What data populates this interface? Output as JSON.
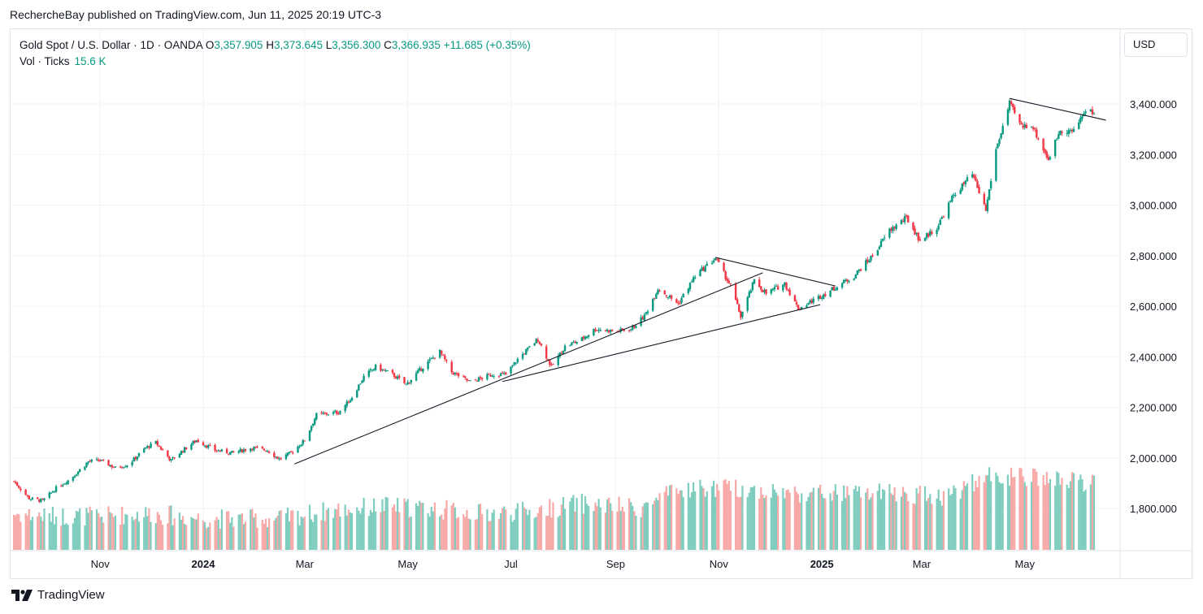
{
  "publisher_line": "RechercheBay published on TradingView.com, Jun 11, 2025 20:19 UTC-3",
  "legend": {
    "symbol": "Gold Spot / U.S. Dollar · 1D · OANDA",
    "o_label": "O",
    "o_value": "3,357.905",
    "h_label": "H",
    "h_value": "3,373.645",
    "l_label": "L",
    "l_value": "3,356.300",
    "c_label": "C",
    "c_value": "3,366.935",
    "change": "+11.685 (+0.35%)",
    "vol_label": "Vol · Ticks",
    "vol_value": "15.6 K"
  },
  "currency_button": "USD",
  "brand": "TradingView",
  "colors": {
    "up": "#089981",
    "down": "#f23645",
    "vol_up": "#7fcdbf",
    "vol_down": "#f7a9a7",
    "grid": "#f0f3fa",
    "trendline": "#131722"
  },
  "chart_data": {
    "type": "candlestick",
    "y_axis": {
      "min": 1700,
      "max": 3560,
      "ticks": [
        "3,400.000",
        "3,200.000",
        "3,000.000",
        "2,800.000",
        "2,600.000",
        "2,400.000",
        "2,200.000",
        "2,000.000",
        "1,800.000"
      ],
      "tick_values": [
        3400,
        3200,
        3000,
        2800,
        2600,
        2400,
        2200,
        2000,
        1800
      ]
    },
    "x_axis": {
      "labels": [
        "Nov",
        "2024",
        "Mar",
        "May",
        "Jul",
        "Sep",
        "Nov",
        "2025",
        "Mar",
        "May"
      ],
      "label_dates": [
        "2023-11-01",
        "2024-01-01",
        "2024-03-01",
        "2024-05-01",
        "2024-07-01",
        "2024-09-01",
        "2024-11-01",
        "2025-01-01",
        "2025-03-01",
        "2025-05-01"
      ],
      "bold": [
        false,
        true,
        false,
        false,
        false,
        false,
        false,
        true,
        false,
        false
      ],
      "start": "2023-09-10",
      "end": "2025-06-11"
    },
    "close_path": [
      [
        "2023-09-10",
        1915
      ],
      [
        "2023-09-20",
        1840
      ],
      [
        "2023-09-28",
        1830
      ],
      [
        "2023-10-06",
        1880
      ],
      [
        "2023-10-15",
        1920
      ],
      [
        "2023-10-25",
        1985
      ],
      [
        "2023-11-01",
        1990
      ],
      [
        "2023-11-10",
        1960
      ],
      [
        "2023-11-18",
        1975
      ],
      [
        "2023-11-28",
        2040
      ],
      [
        "2023-12-04",
        2060
      ],
      [
        "2023-12-13",
        1990
      ],
      [
        "2023-12-20",
        2030
      ],
      [
        "2023-12-28",
        2070
      ],
      [
        "2024-01-08",
        2030
      ],
      [
        "2024-01-18",
        2020
      ],
      [
        "2024-01-30",
        2040
      ],
      [
        "2024-02-08",
        2030
      ],
      [
        "2024-02-15",
        1995
      ],
      [
        "2024-02-22",
        2020
      ],
      [
        "2024-03-01",
        2070
      ],
      [
        "2024-03-08",
        2170
      ],
      [
        "2024-03-21",
        2180
      ],
      [
        "2024-03-28",
        2230
      ],
      [
        "2024-04-05",
        2320
      ],
      [
        "2024-04-12",
        2360
      ],
      [
        "2024-04-22",
        2330
      ],
      [
        "2024-04-30",
        2290
      ],
      [
        "2024-05-10",
        2360
      ],
      [
        "2024-05-20",
        2420
      ],
      [
        "2024-05-27",
        2340
      ],
      [
        "2024-06-07",
        2300
      ],
      [
        "2024-06-20",
        2330
      ],
      [
        "2024-06-28",
        2330
      ],
      [
        "2024-07-05",
        2390
      ],
      [
        "2024-07-17",
        2470
      ],
      [
        "2024-07-25",
        2360
      ],
      [
        "2024-08-02",
        2440
      ],
      [
        "2024-08-12",
        2470
      ],
      [
        "2024-08-20",
        2510
      ],
      [
        "2024-09-01",
        2500
      ],
      [
        "2024-09-10",
        2510
      ],
      [
        "2024-09-18",
        2560
      ],
      [
        "2024-09-26",
        2670
      ],
      [
        "2024-10-08",
        2610
      ],
      [
        "2024-10-18",
        2720
      ],
      [
        "2024-10-30",
        2790
      ],
      [
        "2024-11-08",
        2680
      ],
      [
        "2024-11-14",
        2560
      ],
      [
        "2024-11-22",
        2700
      ],
      [
        "2024-11-29",
        2650
      ],
      [
        "2024-12-10",
        2690
      ],
      [
        "2024-12-18",
        2590
      ],
      [
        "2024-12-26",
        2620
      ],
      [
        "2025-01-08",
        2670
      ],
      [
        "2025-01-20",
        2720
      ],
      [
        "2025-01-31",
        2800
      ],
      [
        "2025-02-10",
        2900
      ],
      [
        "2025-02-20",
        2950
      ],
      [
        "2025-02-28",
        2860
      ],
      [
        "2025-03-10",
        2910
      ],
      [
        "2025-03-20",
        3040
      ],
      [
        "2025-03-31",
        3120
      ],
      [
        "2025-04-08",
        2980
      ],
      [
        "2025-04-14",
        3220
      ],
      [
        "2025-04-22",
        3400
      ],
      [
        "2025-04-29",
        3310
      ],
      [
        "2025-05-05",
        3320
      ],
      [
        "2025-05-15",
        3180
      ],
      [
        "2025-05-22",
        3300
      ],
      [
        "2025-05-30",
        3290
      ],
      [
        "2025-06-05",
        3370
      ],
      [
        "2025-06-11",
        3367
      ]
    ],
    "volume_path": [
      [
        "2023-09-10",
        1780
      ],
      [
        "2023-10-01",
        1770
      ],
      [
        "2023-11-01",
        1770
      ],
      [
        "2023-12-01",
        1780
      ],
      [
        "2024-01-01",
        1760
      ],
      [
        "2024-02-15",
        1760
      ],
      [
        "2024-03-15",
        1790
      ],
      [
        "2024-04-15",
        1810
      ],
      [
        "2024-05-15",
        1800
      ],
      [
        "2024-06-15",
        1780
      ],
      [
        "2024-07-15",
        1790
      ],
      [
        "2024-08-10",
        1820
      ],
      [
        "2024-09-15",
        1800
      ],
      [
        "2024-10-01",
        1850
      ],
      [
        "2024-10-15",
        1880
      ],
      [
        "2024-11-10",
        1880
      ],
      [
        "2024-12-15",
        1860
      ],
      [
        "2025-01-15",
        1860
      ],
      [
        "2025-02-15",
        1860
      ],
      [
        "2025-03-15",
        1850
      ],
      [
        "2025-04-10",
        1930
      ],
      [
        "2025-05-10",
        1920
      ],
      [
        "2025-06-10",
        1900
      ]
    ],
    "volume_last": 15.6,
    "trendlines": [
      [
        [
          "2024-02-24",
          1976
        ],
        [
          "2024-11-27",
          2732
        ]
      ],
      [
        [
          "2024-06-26",
          2302
        ],
        [
          "2024-12-31",
          2606
        ]
      ],
      [
        [
          "2024-10-30",
          2793
        ],
        [
          "2025-01-09",
          2680
        ]
      ],
      [
        [
          "2025-04-22",
          3422
        ],
        [
          "2025-06-18",
          3336
        ]
      ]
    ],
    "title": "Gold Spot / U.S. Dollar · 1D · OANDA",
    "grid": true,
    "legend_position": "top-left"
  }
}
